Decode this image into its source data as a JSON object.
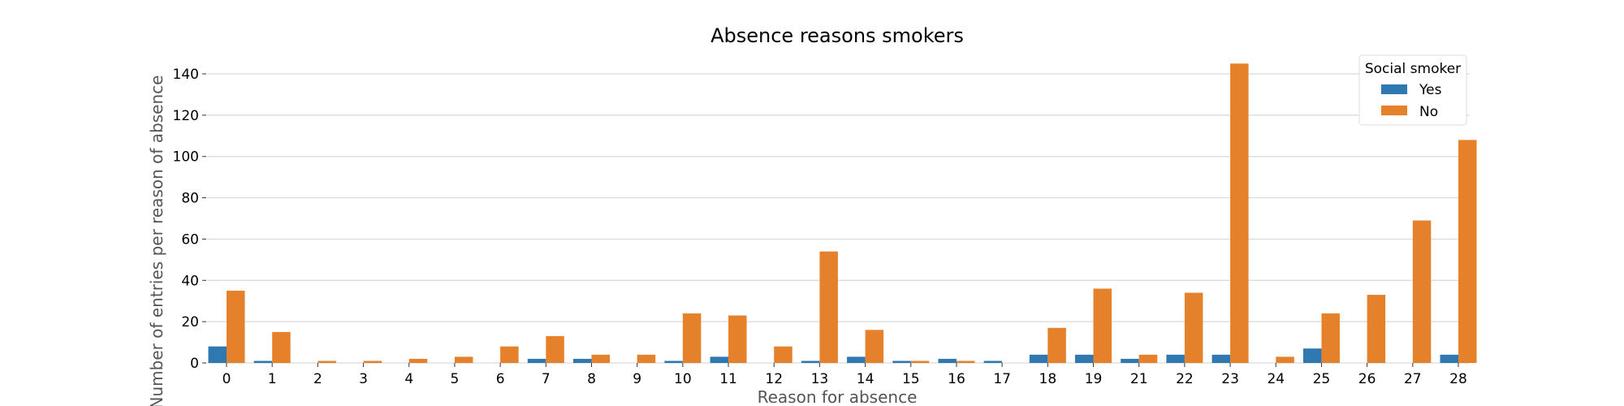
{
  "colors": {
    "yes": "#2f78b0",
    "no": "#e5812b",
    "grid": "#d9d9d9"
  },
  "chart_data": {
    "type": "bar",
    "title": "Absence reasons smokers",
    "xlabel": "Reason for absence",
    "ylabel": "Number of entries per reason of absence",
    "categories": [
      "0",
      "1",
      "2",
      "3",
      "4",
      "5",
      "6",
      "7",
      "8",
      "9",
      "10",
      "11",
      "12",
      "13",
      "14",
      "15",
      "16",
      "17",
      "18",
      "19",
      "21",
      "22",
      "23",
      "24",
      "25",
      "26",
      "27",
      "28"
    ],
    "series": [
      {
        "name": "Yes",
        "values": [
          8,
          1,
          0,
          0,
          0,
          0,
          0,
          2,
          2,
          0,
          1,
          3,
          0,
          1,
          3,
          1,
          2,
          1,
          4,
          4,
          2,
          4,
          4,
          0,
          7,
          0,
          0,
          4
        ]
      },
      {
        "name": "No",
        "values": [
          35,
          15,
          1,
          1,
          2,
          3,
          8,
          13,
          4,
          4,
          24,
          23,
          8,
          54,
          16,
          1,
          1,
          0,
          17,
          36,
          4,
          34,
          145,
          3,
          24,
          33,
          69,
          108
        ]
      }
    ],
    "ylim": [
      0,
      150
    ],
    "yticks": [
      0,
      20,
      40,
      60,
      80,
      100,
      120,
      140
    ],
    "grid": true,
    "legend": {
      "title": "Social smoker",
      "placement": "top-right"
    }
  }
}
